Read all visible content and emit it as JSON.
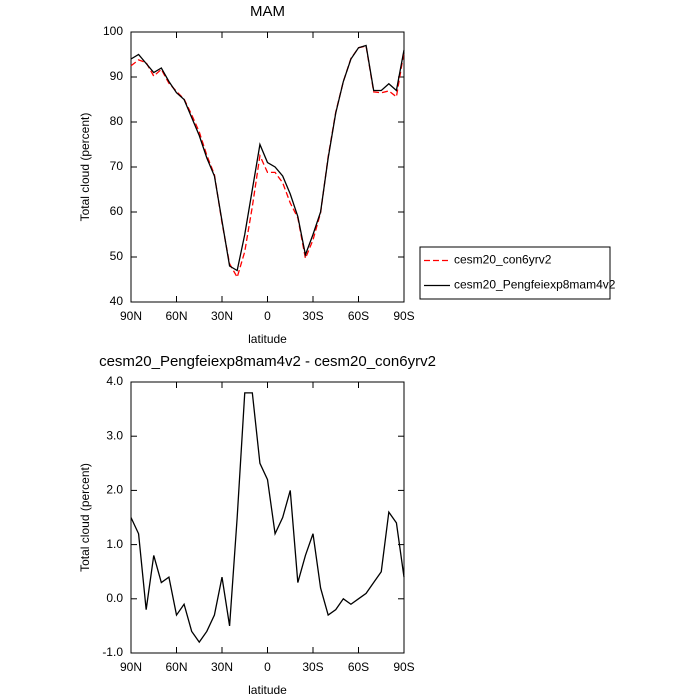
{
  "chart_data": [
    {
      "type": "line",
      "title": "MAM",
      "xlabel": "latitude",
      "ylabel": "Total cloud (percent)",
      "x": [
        90,
        85,
        80,
        75,
        70,
        65,
        60,
        55,
        50,
        45,
        40,
        35,
        30,
        25,
        20,
        15,
        10,
        5,
        0,
        -5,
        -10,
        -15,
        -20,
        -25,
        -30,
        -35,
        -40,
        -45,
        -50,
        -55,
        -60,
        -65,
        -70,
        -75,
        -80,
        -85,
        -90
      ],
      "xlim": [
        90,
        -90
      ],
      "xticks": [
        {
          "value": 90,
          "label": "90N"
        },
        {
          "value": 60,
          "label": "60N"
        },
        {
          "value": 30,
          "label": "30N"
        },
        {
          "value": 0,
          "label": "0"
        },
        {
          "value": -30,
          "label": "30S"
        },
        {
          "value": -60,
          "label": "60S"
        },
        {
          "value": -90,
          "label": "90S"
        }
      ],
      "ylim": [
        40,
        100
      ],
      "yticks": [
        40,
        50,
        60,
        70,
        80,
        90,
        100
      ],
      "legend": "right",
      "series": [
        {
          "name": "cesm20_con6yrv2",
          "color": "#ff0000",
          "dash": true,
          "values": [
            92.5,
            93.8,
            93.2,
            90.2,
            91.7,
            88.6,
            86.8,
            85.1,
            81.6,
            77.8,
            72.6,
            68.3,
            57.6,
            48.5,
            45.5,
            51.2,
            61.2,
            72.5,
            68.8,
            68.8,
            66.5,
            62,
            58.7,
            49.7,
            53.8,
            59.8,
            72.3,
            82.2,
            89,
            94.1,
            96.5,
            96.9,
            86.7,
            86.5,
            86.9,
            85.6,
            95.6
          ]
        },
        {
          "name": "cesm20_Pengfeiexp8mam4v2",
          "color": "#000000",
          "dash": false,
          "values": [
            94,
            95,
            93,
            91,
            92,
            89,
            86.5,
            85,
            81,
            77,
            72,
            68,
            58,
            48,
            47,
            55,
            65,
            75,
            71,
            70,
            68,
            64,
            59,
            50.5,
            55,
            60,
            72,
            82,
            89,
            94,
            96.5,
            97,
            87,
            87,
            88.5,
            87,
            96
          ]
        }
      ]
    },
    {
      "type": "line",
      "title": "cesm20_Pengfeiexp8mam4v2 - cesm20_con6yrv2",
      "xlabel": "latitude",
      "ylabel": "Total cloud (percent)",
      "x": [
        90,
        85,
        80,
        75,
        70,
        65,
        60,
        55,
        50,
        45,
        40,
        35,
        30,
        25,
        20,
        15,
        10,
        5,
        0,
        -5,
        -10,
        -15,
        -20,
        -25,
        -30,
        -35,
        -40,
        -45,
        -50,
        -55,
        -60,
        -65,
        -70,
        -75,
        -80,
        -85,
        -90
      ],
      "xlim": [
        90,
        -90
      ],
      "xticks": [
        {
          "value": 90,
          "label": "90N"
        },
        {
          "value": 60,
          "label": "60N"
        },
        {
          "value": 30,
          "label": "30N"
        },
        {
          "value": 0,
          "label": "0"
        },
        {
          "value": -30,
          "label": "30S"
        },
        {
          "value": -60,
          "label": "60S"
        },
        {
          "value": -90,
          "label": "90S"
        }
      ],
      "ylim": [
        -1,
        4
      ],
      "yticks": [
        {
          "value": -1,
          "label": "-1.0"
        },
        {
          "value": 0,
          "label": "0.0"
        },
        {
          "value": 1,
          "label": "1.0"
        },
        {
          "value": 2,
          "label": "2.0"
        },
        {
          "value": 3,
          "label": "3.0"
        },
        {
          "value": 4,
          "label": "4.0"
        }
      ],
      "series": [
        {
          "color": "#000000",
          "dash": false,
          "values": [
            1.5,
            1.2,
            -0.2,
            0.8,
            0.3,
            0.4,
            -0.3,
            -0.1,
            -0.6,
            -0.8,
            -0.6,
            -0.3,
            0.4,
            -0.5,
            1.5,
            3.8,
            3.8,
            2.5,
            2.2,
            1.2,
            1.5,
            2.0,
            0.3,
            0.8,
            1.2,
            0.2,
            -0.3,
            -0.2,
            0.0,
            -0.1,
            0.0,
            0.1,
            0.3,
            0.5,
            1.6,
            1.4,
            0.4
          ]
        }
      ]
    }
  ]
}
